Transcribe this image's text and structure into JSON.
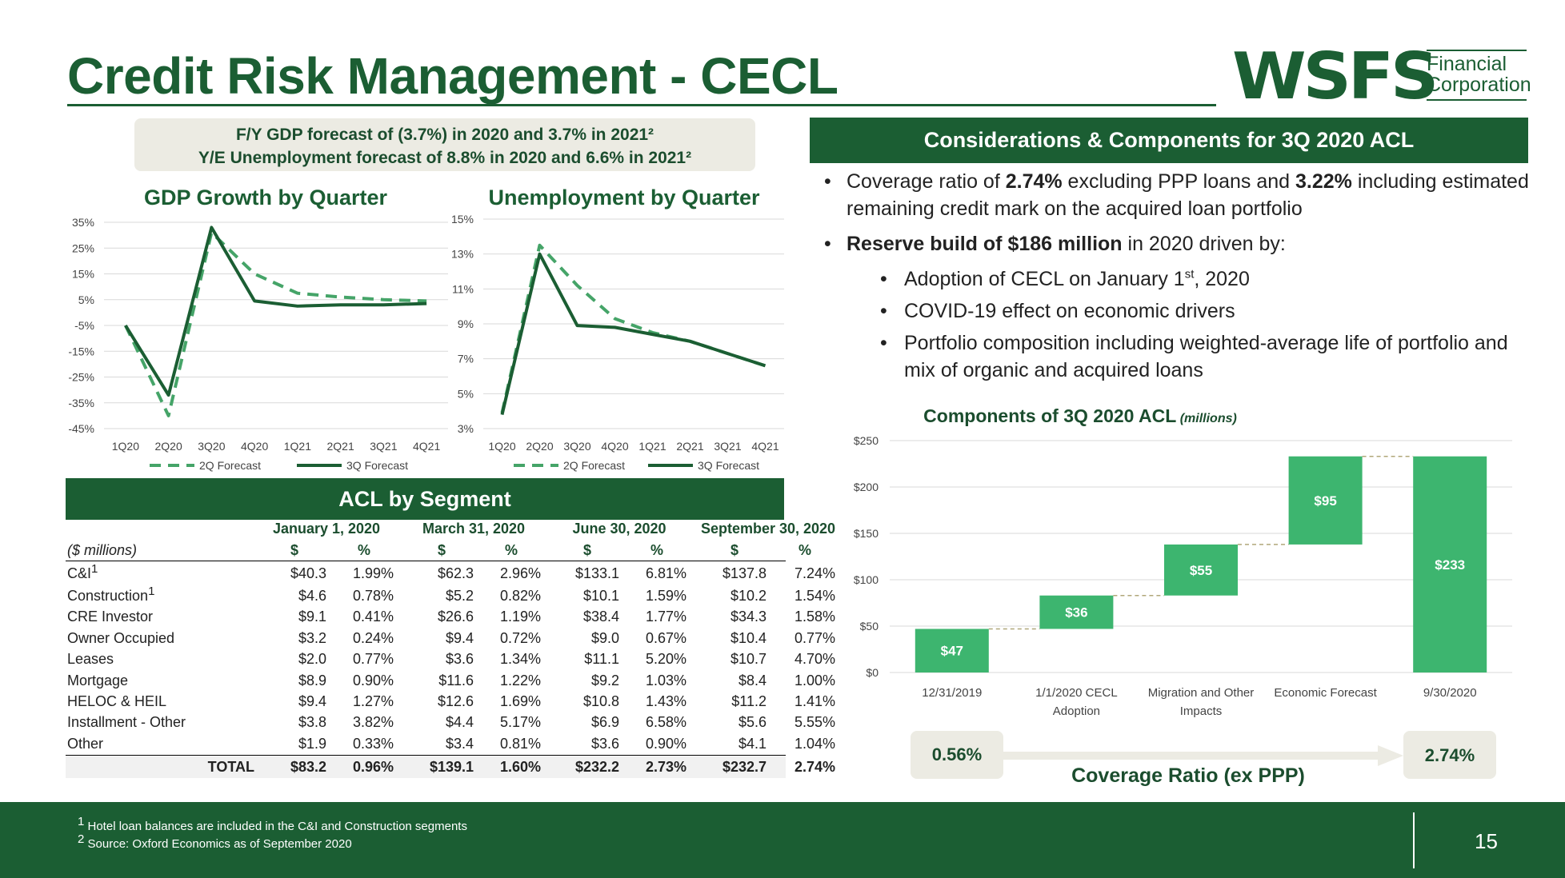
{
  "title": "Credit Risk Management - CECL",
  "logo": {
    "mark": "WSFS",
    "line1": "Financial",
    "line2": "Corporation"
  },
  "forecast": {
    "line1": "F/Y GDP forecast of (3.7%) in 2020 and 3.7% in 2021²",
    "line2": "Y/E Unemployment forecast of 8.8% in 2020 and 6.6% in 2021²"
  },
  "considerations": {
    "header": "Considerations & Components for 3Q 2020 ACL",
    "b1_pre": "Coverage ratio of ",
    "b1_v1": "2.74%",
    "b1_mid": " excluding PPP loans and ",
    "b1_v2": "3.22%",
    "b1_post": " including estimated remaining credit mark on the acquired loan portfolio",
    "b2_bold": "Reserve build of $186 million",
    "b2_post": " in 2020 driven by:",
    "sub1_pre": "Adoption of CECL on January 1",
    "sub1_sup": "st",
    "sub1_post": ", 2020",
    "sub2": "COVID-19 effect on economic drivers",
    "sub3": "Portfolio composition including weighted-average life of portfolio and mix of organic and acquired loans"
  },
  "acl_segment": {
    "header": "ACL by Segment",
    "groups": [
      "January 1, 2020",
      "March 31, 2020",
      "June 30, 2020",
      "September 30, 2020"
    ],
    "units_label": "($ millions)",
    "col_dollar": "$",
    "col_pct": "%",
    "rows": [
      {
        "label": "C&I",
        "sup": "1",
        "v": [
          "$40.3",
          "1.99%",
          "$62.3",
          "2.96%",
          "$133.1",
          "6.81%",
          "$137.8",
          "7.24%"
        ]
      },
      {
        "label": "Construction",
        "sup": "1",
        "v": [
          "$4.6",
          "0.78%",
          "$5.2",
          "0.82%",
          "$10.1",
          "1.59%",
          "$10.2",
          "1.54%"
        ]
      },
      {
        "label": "CRE Investor",
        "sup": "",
        "v": [
          "$9.1",
          "0.41%",
          "$26.6",
          "1.19%",
          "$38.4",
          "1.77%",
          "$34.3",
          "1.58%"
        ]
      },
      {
        "label": "Owner Occupied",
        "sup": "",
        "v": [
          "$3.2",
          "0.24%",
          "$9.4",
          "0.72%",
          "$9.0",
          "0.67%",
          "$10.4",
          "0.77%"
        ]
      },
      {
        "label": "Leases",
        "sup": "",
        "v": [
          "$2.0",
          "0.77%",
          "$3.6",
          "1.34%",
          "$11.1",
          "5.20%",
          "$10.7",
          "4.70%"
        ]
      },
      {
        "label": "Mortgage",
        "sup": "",
        "v": [
          "$8.9",
          "0.90%",
          "$11.6",
          "1.22%",
          "$9.2",
          "1.03%",
          "$8.4",
          "1.00%"
        ]
      },
      {
        "label": "HELOC & HEIL",
        "sup": "",
        "v": [
          "$9.4",
          "1.27%",
          "$12.6",
          "1.69%",
          "$10.8",
          "1.43%",
          "$11.2",
          "1.41%"
        ]
      },
      {
        "label": "Installment - Other",
        "sup": "",
        "v": [
          "$3.8",
          "3.82%",
          "$4.4",
          "5.17%",
          "$6.9",
          "6.58%",
          "$5.6",
          "5.55%"
        ]
      },
      {
        "label": "Other",
        "sup": "",
        "v": [
          "$1.9",
          "0.33%",
          "$3.4",
          "0.81%",
          "$3.6",
          "0.90%",
          "$4.1",
          "1.04%"
        ]
      }
    ],
    "total": {
      "label": "TOTAL",
      "v": [
        "$83.2",
        "0.96%",
        "$139.1",
        "1.60%",
        "$232.2",
        "2.73%",
        "$232.7",
        "2.74%"
      ]
    }
  },
  "coverage": {
    "from": "0.56%",
    "to": "2.74%",
    "label": "Coverage Ratio (ex PPP)"
  },
  "footnotes": {
    "f1_sup": "1",
    "f1": " Hotel loan balances are included in the C&I and Construction segments",
    "f2_sup": "2",
    "f2": " Source: Oxford Economics as of September 2020"
  },
  "page_number": "15",
  "colors": {
    "dark_green": "#1b5e33",
    "bar_green": "#3db56f",
    "dash_green": "#45a468",
    "pill": "#ecebe3"
  },
  "chart_data": [
    {
      "type": "line",
      "title": "GDP Growth by Quarter",
      "categories": [
        "1Q20",
        "2Q20",
        "3Q20",
        "4Q20",
        "1Q21",
        "2Q21",
        "3Q21",
        "4Q21"
      ],
      "series": [
        {
          "name": "2Q Forecast",
          "style": "dashed",
          "values": [
            -5,
            -40,
            31,
            15,
            7.5,
            6,
            5,
            4.5
          ]
        },
        {
          "name": "3Q Forecast",
          "style": "solid",
          "values": [
            -5,
            -32,
            33,
            4.5,
            2.5,
            3,
            3,
            3.5
          ]
        }
      ],
      "y_ticks": [
        "35%",
        "25%",
        "15%",
        "5%",
        "-5%",
        "-15%",
        "-25%",
        "-35%",
        "-45%"
      ],
      "ylim": [
        -45,
        35
      ]
    },
    {
      "type": "line",
      "title": "Unemployment by Quarter",
      "categories": [
        "1Q20",
        "2Q20",
        "3Q20",
        "4Q20",
        "1Q21",
        "2Q21",
        "3Q21",
        "4Q21"
      ],
      "series": [
        {
          "name": "2Q Forecast",
          "style": "dashed",
          "values": [
            3.9,
            13.5,
            11.2,
            9.3,
            8.5,
            8.0,
            7.3,
            6.6
          ]
        },
        {
          "name": "3Q Forecast",
          "style": "solid",
          "values": [
            3.8,
            13.0,
            8.9,
            8.8,
            8.4,
            8.0,
            7.3,
            6.6
          ]
        }
      ],
      "y_ticks": [
        "15%",
        "13%",
        "11%",
        "9%",
        "7%",
        "5%",
        "3%"
      ],
      "ylim": [
        3,
        15
      ]
    },
    {
      "type": "bar",
      "subtype": "waterfall",
      "title": "Components of 3Q 2020 ACL",
      "title_units": "(millions)",
      "categories": [
        "12/31/2019",
        "1/1/2020 CECL Adoption",
        "Migration and Other Impacts",
        "Economic Forecast",
        "9/30/2020"
      ],
      "values": [
        47,
        36,
        55,
        95,
        233
      ],
      "labels": [
        "$47",
        "$36",
        "$55",
        "$95",
        "$233"
      ],
      "bases": [
        0,
        47,
        83,
        138,
        0
      ],
      "y_ticks": [
        "$250",
        "$200",
        "$150",
        "$100",
        "$50",
        "$0"
      ],
      "ylim": [
        0,
        250
      ]
    }
  ]
}
